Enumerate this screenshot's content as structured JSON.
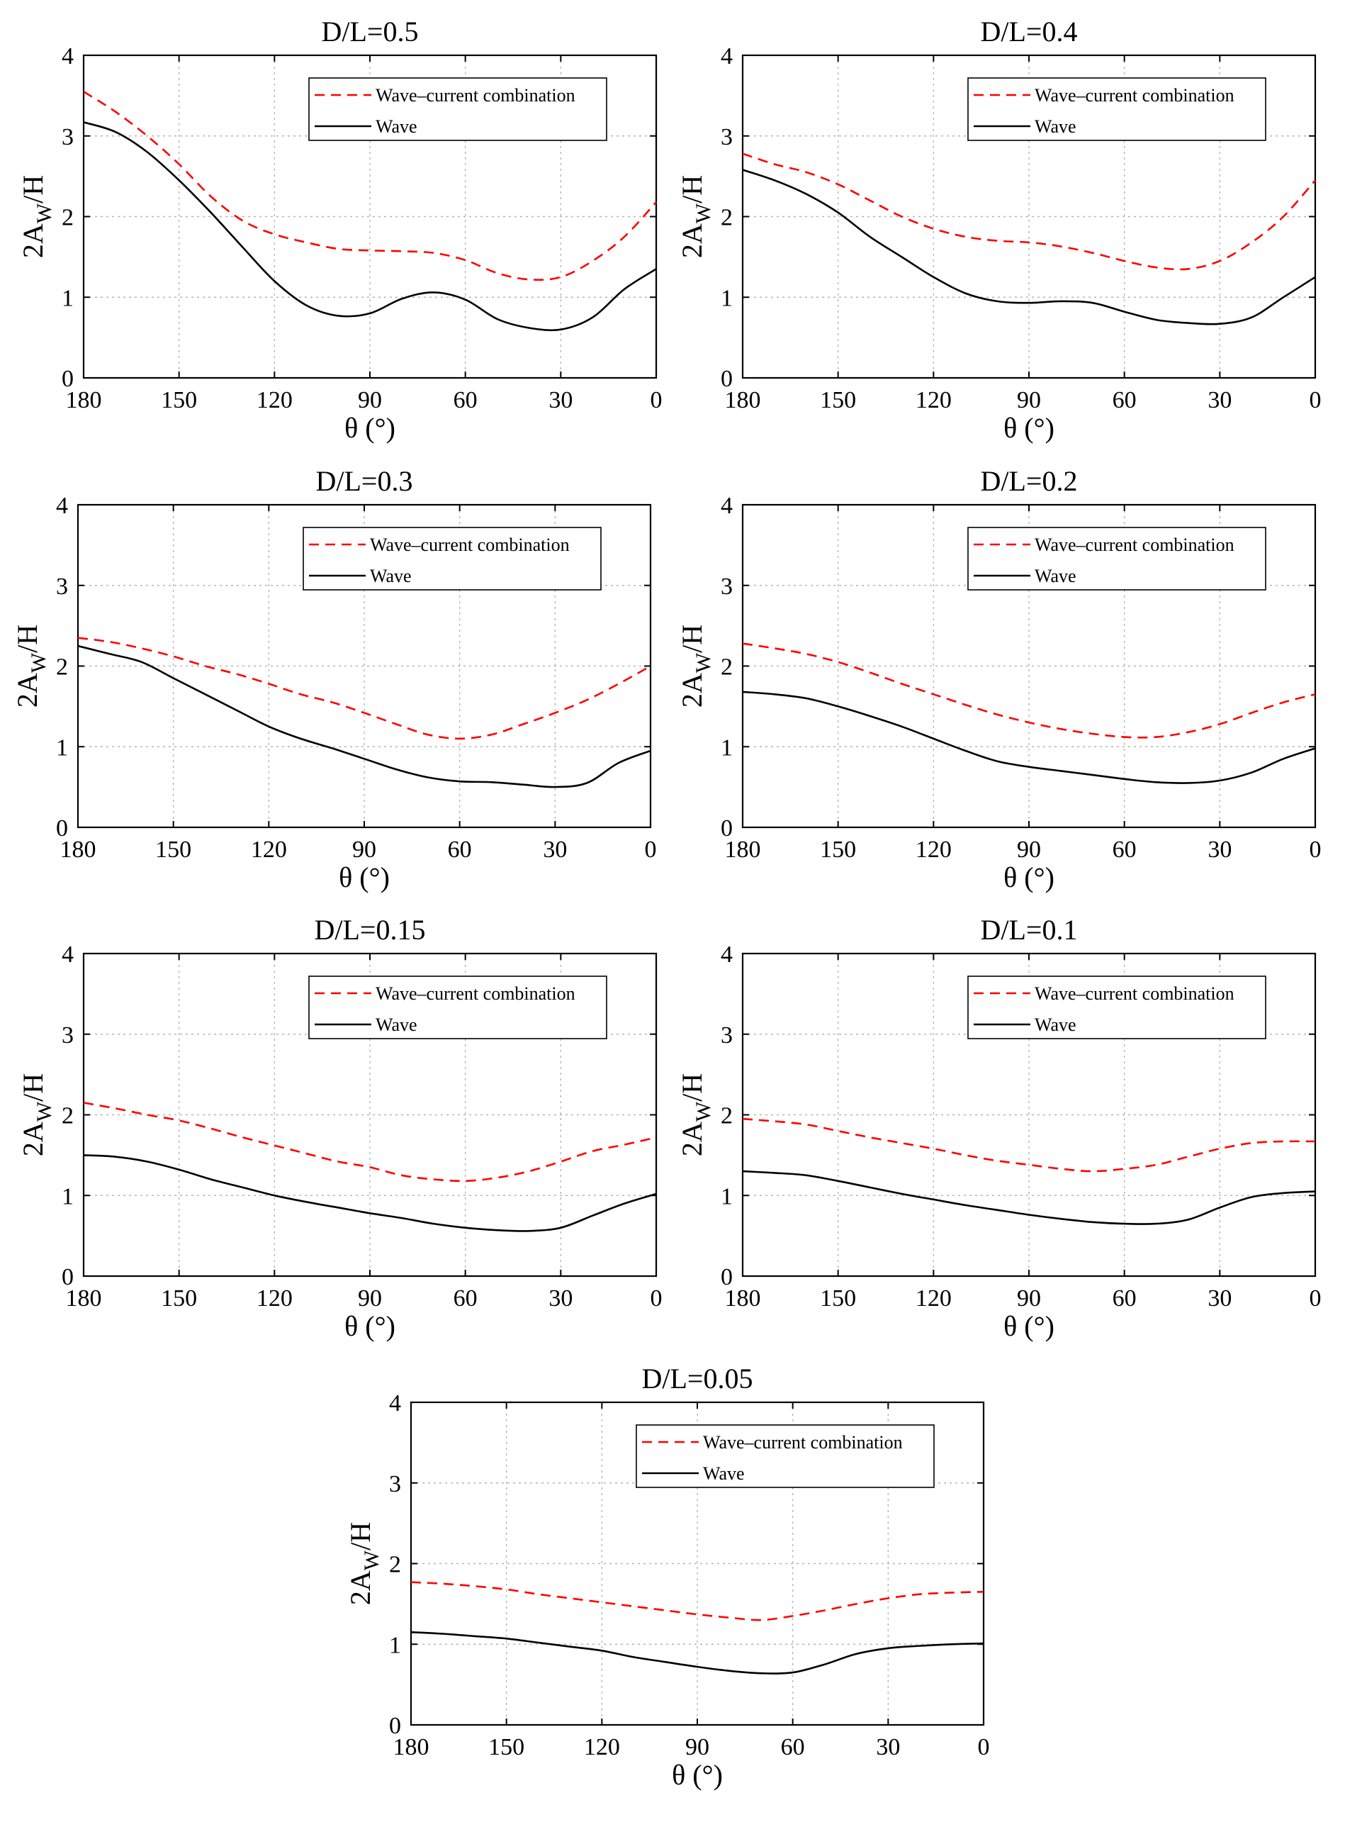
{
  "chart_data": [
    {
      "type": "line",
      "title": "D/L=0.5",
      "xlabel": "θ (°)",
      "ylabel_main": "2A",
      "ylabel_sub": "W",
      "ylabel_tail": "/H",
      "xlim": [
        180,
        0
      ],
      "ylim": [
        0,
        4
      ],
      "xticks": [
        "180",
        "150",
        "120",
        "90",
        "60",
        "30",
        "0"
      ],
      "yticks": [
        "0",
        "1",
        "2",
        "3",
        "4"
      ],
      "grid": true,
      "legend_position": "top-right",
      "series": [
        {
          "name": "Wave–current combination",
          "style": "dashed-red",
          "x": [
            180,
            170,
            160,
            150,
            140,
            130,
            120,
            110,
            100,
            90,
            80,
            70,
            60,
            50,
            40,
            30,
            20,
            10,
            0
          ],
          "y": [
            3.55,
            3.3,
            3.0,
            2.65,
            2.25,
            1.95,
            1.78,
            1.68,
            1.6,
            1.58,
            1.57,
            1.55,
            1.46,
            1.3,
            1.22,
            1.25,
            1.45,
            1.75,
            2.18
          ]
        },
        {
          "name": "Wave",
          "style": "solid-black",
          "x": [
            180,
            170,
            160,
            150,
            140,
            130,
            120,
            110,
            100,
            90,
            80,
            70,
            60,
            50,
            40,
            30,
            20,
            10,
            0
          ],
          "y": [
            3.17,
            3.05,
            2.8,
            2.45,
            2.05,
            1.62,
            1.2,
            0.9,
            0.77,
            0.8,
            0.98,
            1.06,
            0.97,
            0.73,
            0.62,
            0.6,
            0.75,
            1.1,
            1.35
          ]
        }
      ]
    },
    {
      "type": "line",
      "title": "D/L=0.4",
      "xlabel": "θ (°)",
      "ylabel_main": "2A",
      "ylabel_sub": "W",
      "ylabel_tail": "/H",
      "xlim": [
        180,
        0
      ],
      "ylim": [
        0,
        4
      ],
      "xticks": [
        "180",
        "150",
        "120",
        "90",
        "60",
        "30",
        "0"
      ],
      "yticks": [
        "0",
        "1",
        "2",
        "3",
        "4"
      ],
      "grid": true,
      "legend_position": "top-right",
      "series": [
        {
          "name": "Wave–current combination",
          "style": "dashed-red",
          "x": [
            180,
            170,
            160,
            150,
            140,
            130,
            120,
            110,
            100,
            90,
            80,
            70,
            60,
            50,
            40,
            30,
            20,
            10,
            0
          ],
          "y": [
            2.78,
            2.65,
            2.55,
            2.4,
            2.2,
            2.0,
            1.85,
            1.75,
            1.7,
            1.68,
            1.63,
            1.55,
            1.45,
            1.37,
            1.35,
            1.45,
            1.68,
            2.0,
            2.45
          ]
        },
        {
          "name": "Wave",
          "style": "solid-black",
          "x": [
            180,
            170,
            160,
            150,
            140,
            130,
            120,
            110,
            100,
            90,
            80,
            70,
            60,
            50,
            40,
            30,
            20,
            10,
            0
          ],
          "y": [
            2.58,
            2.45,
            2.28,
            2.05,
            1.75,
            1.5,
            1.25,
            1.05,
            0.95,
            0.93,
            0.95,
            0.93,
            0.82,
            0.72,
            0.68,
            0.67,
            0.75,
            1.0,
            1.25
          ]
        }
      ]
    },
    {
      "type": "line",
      "title": "D/L=0.3",
      "xlabel": "θ (°)",
      "ylabel_main": "2A",
      "ylabel_sub": "W",
      "ylabel_tail": "/H",
      "xlim": [
        180,
        0
      ],
      "ylim": [
        0,
        4
      ],
      "xticks": [
        "180",
        "150",
        "120",
        "90",
        "60",
        "30",
        "0"
      ],
      "yticks": [
        "0",
        "1",
        "2",
        "3",
        "4"
      ],
      "grid": true,
      "legend_position": "top-right",
      "series": [
        {
          "name": "Wave–current combination",
          "style": "dashed-red",
          "x": [
            180,
            170,
            160,
            150,
            140,
            130,
            120,
            110,
            100,
            90,
            80,
            70,
            60,
            50,
            40,
            30,
            20,
            10,
            0
          ],
          "y": [
            2.35,
            2.3,
            2.22,
            2.12,
            2.0,
            1.9,
            1.78,
            1.65,
            1.55,
            1.42,
            1.28,
            1.15,
            1.1,
            1.15,
            1.28,
            1.42,
            1.58,
            1.78,
            2.0
          ]
        },
        {
          "name": "Wave",
          "style": "solid-black",
          "x": [
            180,
            170,
            160,
            150,
            140,
            130,
            120,
            110,
            100,
            90,
            80,
            70,
            60,
            50,
            40,
            30,
            20,
            10,
            0
          ],
          "y": [
            2.25,
            2.15,
            2.05,
            1.85,
            1.65,
            1.45,
            1.25,
            1.1,
            0.98,
            0.85,
            0.72,
            0.62,
            0.57,
            0.56,
            0.53,
            0.5,
            0.55,
            0.8,
            0.95
          ]
        }
      ]
    },
    {
      "type": "line",
      "title": "D/L=0.2",
      "xlabel": "θ (°)",
      "ylabel_main": "2A",
      "ylabel_sub": "W",
      "ylabel_tail": "/H",
      "xlim": [
        180,
        0
      ],
      "ylim": [
        0,
        4
      ],
      "xticks": [
        "180",
        "150",
        "120",
        "90",
        "60",
        "30",
        "0"
      ],
      "yticks": [
        "0",
        "1",
        "2",
        "3",
        "4"
      ],
      "grid": true,
      "legend_position": "top-right",
      "series": [
        {
          "name": "Wave–current combination",
          "style": "dashed-red",
          "x": [
            180,
            170,
            160,
            150,
            140,
            130,
            120,
            110,
            100,
            90,
            80,
            70,
            60,
            50,
            40,
            30,
            20,
            10,
            0
          ],
          "y": [
            2.28,
            2.22,
            2.15,
            2.05,
            1.92,
            1.78,
            1.65,
            1.52,
            1.4,
            1.3,
            1.22,
            1.16,
            1.12,
            1.12,
            1.18,
            1.28,
            1.42,
            1.55,
            1.65
          ]
        },
        {
          "name": "Wave",
          "style": "solid-black",
          "x": [
            180,
            170,
            160,
            150,
            140,
            130,
            120,
            110,
            100,
            90,
            80,
            70,
            60,
            50,
            40,
            30,
            20,
            10,
            0
          ],
          "y": [
            1.68,
            1.65,
            1.6,
            1.5,
            1.38,
            1.25,
            1.1,
            0.95,
            0.82,
            0.75,
            0.7,
            0.65,
            0.6,
            0.56,
            0.55,
            0.58,
            0.68,
            0.85,
            0.98
          ]
        }
      ]
    },
    {
      "type": "line",
      "title": "D/L=0.15",
      "xlabel": "θ (°)",
      "ylabel_main": "2A",
      "ylabel_sub": "W",
      "ylabel_tail": "/H",
      "xlim": [
        180,
        0
      ],
      "ylim": [
        0,
        4
      ],
      "xticks": [
        "180",
        "150",
        "120",
        "90",
        "60",
        "30",
        "0"
      ],
      "yticks": [
        "0",
        "1",
        "2",
        "3",
        "4"
      ],
      "grid": true,
      "legend_position": "top-right",
      "series": [
        {
          "name": "Wave–current combination",
          "style": "dashed-red",
          "x": [
            180,
            170,
            160,
            150,
            140,
            130,
            120,
            110,
            100,
            90,
            80,
            70,
            60,
            50,
            40,
            30,
            20,
            10,
            0
          ],
          "y": [
            2.15,
            2.08,
            2.0,
            1.93,
            1.83,
            1.72,
            1.62,
            1.52,
            1.42,
            1.35,
            1.25,
            1.2,
            1.18,
            1.22,
            1.3,
            1.42,
            1.55,
            1.63,
            1.72
          ]
        },
        {
          "name": "Wave",
          "style": "solid-black",
          "x": [
            180,
            170,
            160,
            150,
            140,
            130,
            120,
            110,
            100,
            90,
            80,
            70,
            60,
            50,
            40,
            30,
            20,
            10,
            0
          ],
          "y": [
            1.5,
            1.48,
            1.42,
            1.32,
            1.2,
            1.1,
            1.0,
            0.92,
            0.85,
            0.78,
            0.72,
            0.65,
            0.6,
            0.57,
            0.56,
            0.6,
            0.75,
            0.9,
            1.02
          ]
        }
      ]
    },
    {
      "type": "line",
      "title": "D/L=0.1",
      "xlabel": "θ (°)",
      "ylabel_main": "2A",
      "ylabel_sub": "W",
      "ylabel_tail": "/H",
      "xlim": [
        180,
        0
      ],
      "ylim": [
        0,
        4
      ],
      "xticks": [
        "180",
        "150",
        "120",
        "90",
        "60",
        "30",
        "0"
      ],
      "yticks": [
        "0",
        "1",
        "2",
        "3",
        "4"
      ],
      "grid": true,
      "legend_position": "top-right",
      "series": [
        {
          "name": "Wave–current combination",
          "style": "dashed-red",
          "x": [
            180,
            170,
            160,
            150,
            140,
            130,
            120,
            110,
            100,
            90,
            80,
            70,
            60,
            50,
            40,
            30,
            20,
            10,
            0
          ],
          "y": [
            1.95,
            1.92,
            1.88,
            1.8,
            1.72,
            1.65,
            1.58,
            1.5,
            1.43,
            1.38,
            1.33,
            1.3,
            1.33,
            1.38,
            1.48,
            1.58,
            1.65,
            1.67,
            1.67
          ]
        },
        {
          "name": "Wave",
          "style": "solid-black",
          "x": [
            180,
            170,
            160,
            150,
            140,
            130,
            120,
            110,
            100,
            90,
            80,
            70,
            60,
            50,
            40,
            30,
            20,
            10,
            0
          ],
          "y": [
            1.3,
            1.28,
            1.25,
            1.18,
            1.1,
            1.02,
            0.95,
            0.88,
            0.82,
            0.76,
            0.71,
            0.67,
            0.65,
            0.65,
            0.7,
            0.85,
            0.98,
            1.03,
            1.05
          ]
        }
      ]
    },
    {
      "type": "line",
      "title": "D/L=0.05",
      "xlabel": "θ (°)",
      "ylabel_main": "2A",
      "ylabel_sub": "W",
      "ylabel_tail": "/H",
      "xlim": [
        180,
        0
      ],
      "ylim": [
        0,
        4
      ],
      "xticks": [
        "180",
        "150",
        "120",
        "90",
        "60",
        "30",
        "0"
      ],
      "yticks": [
        "0",
        "1",
        "2",
        "3",
        "4"
      ],
      "grid": true,
      "legend_position": "top-right",
      "series": [
        {
          "name": "Wave–current combination",
          "style": "dashed-red",
          "x": [
            180,
            170,
            160,
            150,
            140,
            130,
            120,
            110,
            100,
            90,
            80,
            70,
            60,
            50,
            40,
            30,
            20,
            10,
            0
          ],
          "y": [
            1.77,
            1.75,
            1.72,
            1.68,
            1.62,
            1.57,
            1.52,
            1.47,
            1.42,
            1.37,
            1.33,
            1.3,
            1.35,
            1.42,
            1.5,
            1.57,
            1.62,
            1.64,
            1.65
          ]
        },
        {
          "name": "Wave",
          "style": "solid-black",
          "x": [
            180,
            170,
            160,
            150,
            140,
            130,
            120,
            110,
            100,
            90,
            80,
            70,
            60,
            50,
            40,
            30,
            20,
            10,
            0
          ],
          "y": [
            1.15,
            1.13,
            1.1,
            1.07,
            1.02,
            0.97,
            0.92,
            0.84,
            0.78,
            0.72,
            0.67,
            0.64,
            0.65,
            0.75,
            0.88,
            0.95,
            0.98,
            1.0,
            1.01
          ]
        }
      ]
    }
  ]
}
